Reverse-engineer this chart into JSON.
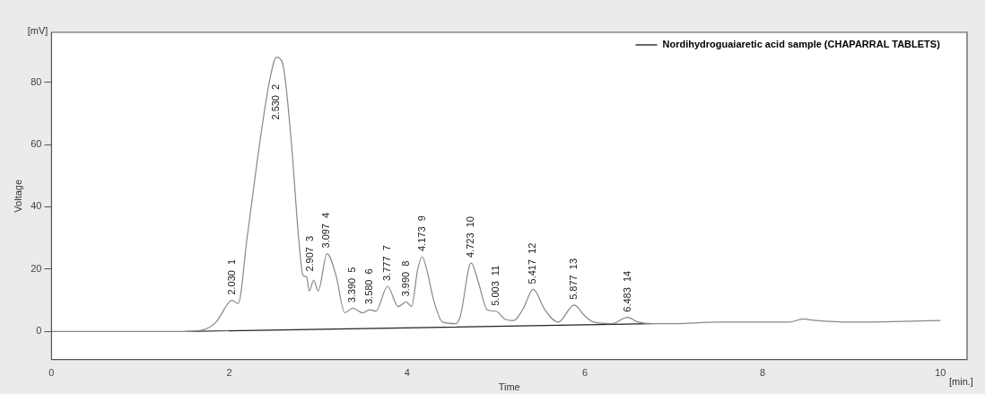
{
  "chart_data": {
    "type": "line",
    "xlabel": "Time",
    "ylabel": "Voltage",
    "x": [
      0,
      1.5,
      1.7,
      1.85,
      2.0,
      2.03,
      2.1,
      2.2,
      2.35,
      2.45,
      2.53,
      2.6,
      2.7,
      2.78,
      2.83,
      2.87,
      2.9,
      2.95,
      3.0,
      3.1,
      3.2,
      3.3,
      3.39,
      3.5,
      3.58,
      3.65,
      3.78,
      3.9,
      3.99,
      4.05,
      4.12,
      4.17,
      4.22,
      4.3,
      4.4,
      4.55,
      4.6,
      4.72,
      4.8,
      4.9,
      5.0,
      5.1,
      5.2,
      5.3,
      5.42,
      5.55,
      5.7,
      5.88,
      6.0,
      6.1,
      6.3,
      6.48,
      6.6,
      6.75,
      7.0,
      7.5,
      8.0,
      8.3,
      8.45,
      8.6,
      9.0,
      10.0
    ],
    "series": [
      {
        "name": "Nordihydroguaiaretic acid sample (CHAPARRAL TABLETS)",
        "color": "#888888",
        "values": [
          0,
          0,
          0.5,
          3,
          9.5,
          10,
          9,
          30,
          62,
          80,
          88,
          86,
          60,
          30,
          18,
          17.5,
          13,
          16.5,
          13,
          25,
          18,
          6,
          7.5,
          6,
          7,
          6.5,
          14.5,
          8,
          9.5,
          8,
          20,
          24,
          20,
          10,
          3,
          2.5,
          5,
          22,
          16,
          7,
          6.5,
          4,
          3.5,
          7,
          13.5,
          7,
          3,
          8.5,
          5,
          3,
          2.5,
          4.5,
          3,
          2.5,
          2.5,
          3,
          3,
          3,
          4,
          3.5,
          3,
          3.5
        ]
      },
      {
        "color": "#222222",
        "x": [
          1.5,
          6.75
        ],
        "values": [
          0,
          2.5
        ]
      }
    ],
    "xlim": [
      0,
      10.3
    ],
    "xticks": [
      0,
      2,
      4,
      6,
      8,
      10
    ],
    "ylim": [
      -9,
      96
    ],
    "yticks": [
      0,
      20,
      40,
      60,
      80
    ],
    "grid": false,
    "legend": "top right",
    "marker": "none",
    "line_style": "solid",
    "annotations": [
      "[mV]",
      "[min.]",
      {
        "text": "2.030  1",
        "x": 2.03,
        "y": 10
      },
      {
        "text": "2.530  2",
        "x": 2.53,
        "y": 88
      },
      {
        "text": "2.907  3",
        "x": 2.907,
        "y": 17.5
      },
      {
        "text": "3.097  4",
        "x": 3.097,
        "y": 25
      },
      {
        "text": "3.390  5",
        "x": 3.39,
        "y": 7.5
      },
      {
        "text": "3.580  6",
        "x": 3.58,
        "y": 7
      },
      {
        "text": "3.777  7",
        "x": 3.777,
        "y": 14.5
      },
      {
        "text": "3.990  8",
        "x": 3.99,
        "y": 9.5
      },
      {
        "text": "4.173  9",
        "x": 4.173,
        "y": 24
      },
      {
        "text": "4.723  10",
        "x": 4.723,
        "y": 22
      },
      {
        "text": "5.003  11",
        "x": 5.003,
        "y": 6.5
      },
      {
        "text": "5.417  12",
        "x": 5.417,
        "y": 13.5
      },
      {
        "text": "5.877  13",
        "x": 5.877,
        "y": 8.5
      },
      {
        "text": "6.483  14",
        "x": 6.483,
        "y": 4.5
      }
    ]
  }
}
